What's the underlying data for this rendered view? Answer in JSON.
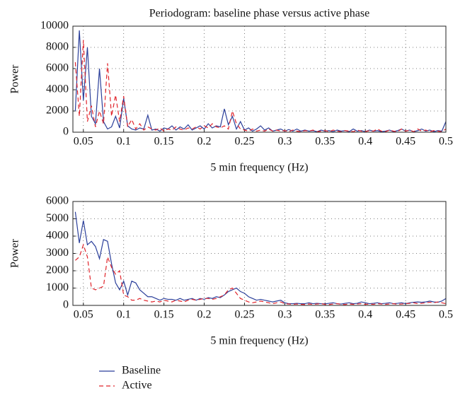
{
  "chart_data": [
    {
      "type": "line",
      "title": "Periodogram: baseline phase versus active phase",
      "xlabel": "5 min frequency (Hz)",
      "ylabel": "Power",
      "xlim": [
        0.037,
        0.5
      ],
      "ylim": [
        0,
        10000
      ],
      "xticks": [
        0.05,
        0.1,
        0.15,
        0.2,
        0.25,
        0.3,
        0.35,
        0.4,
        0.45,
        0.5
      ],
      "yticks": [
        0,
        2000,
        4000,
        6000,
        8000,
        10000
      ],
      "grid": true,
      "x": [
        0.04,
        0.045,
        0.05,
        0.055,
        0.06,
        0.065,
        0.07,
        0.075,
        0.08,
        0.085,
        0.09,
        0.095,
        0.1,
        0.105,
        0.11,
        0.115,
        0.12,
        0.125,
        0.13,
        0.135,
        0.14,
        0.145,
        0.15,
        0.155,
        0.16,
        0.165,
        0.17,
        0.175,
        0.18,
        0.185,
        0.19,
        0.195,
        0.2,
        0.205,
        0.21,
        0.215,
        0.22,
        0.225,
        0.23,
        0.235,
        0.24,
        0.245,
        0.25,
        0.255,
        0.26,
        0.265,
        0.27,
        0.275,
        0.28,
        0.285,
        0.29,
        0.295,
        0.3,
        0.305,
        0.31,
        0.315,
        0.32,
        0.325,
        0.33,
        0.335,
        0.34,
        0.345,
        0.35,
        0.355,
        0.36,
        0.365,
        0.37,
        0.375,
        0.38,
        0.385,
        0.39,
        0.395,
        0.4,
        0.405,
        0.41,
        0.415,
        0.42,
        0.425,
        0.43,
        0.435,
        0.44,
        0.445,
        0.45,
        0.455,
        0.46,
        0.465,
        0.47,
        0.475,
        0.48,
        0.485,
        0.49,
        0.495,
        0.5
      ],
      "series": [
        {
          "name": "Baseline",
          "color": "#2b3f9a",
          "linestyle": "solid",
          "values": [
            2000,
            9600,
            3000,
            8000,
            1500,
            800,
            6000,
            1000,
            300,
            500,
            1500,
            400,
            3200,
            600,
            300,
            200,
            400,
            300,
            1600,
            200,
            300,
            100,
            400,
            300,
            600,
            200,
            500,
            300,
            700,
            200,
            400,
            600,
            300,
            800,
            400,
            600,
            500,
            2200,
            700,
            1500,
            300,
            1000,
            200,
            400,
            100,
            300,
            600,
            200,
            400,
            100,
            200,
            300,
            100,
            250,
            100,
            300,
            100,
            200,
            100,
            150,
            50,
            200,
            100,
            150,
            50,
            200,
            100,
            150,
            50,
            300,
            100,
            150,
            50,
            200,
            100,
            150,
            50,
            100,
            200,
            50,
            150,
            300,
            100,
            200,
            50,
            150,
            300,
            100,
            200,
            50,
            150,
            100,
            1000
          ]
        },
        {
          "name": "Active",
          "color": "#e0242b",
          "linestyle": "dashed",
          "values": [
            6600,
            1500,
            8700,
            1000,
            2500,
            500,
            2000,
            800,
            6500,
            1500,
            3500,
            1000,
            3400,
            500,
            1200,
            300,
            800,
            200,
            500,
            300,
            200,
            400,
            100,
            300,
            200,
            500,
            300,
            200,
            400,
            300,
            500,
            300,
            600,
            400,
            800,
            500,
            400,
            600,
            300,
            2000,
            800,
            300,
            200,
            100,
            300,
            100,
            200,
            100,
            300,
            100,
            200,
            100,
            150,
            50,
            200,
            100,
            50,
            150,
            100,
            200,
            50,
            100,
            150,
            50,
            200,
            100,
            50,
            150,
            100,
            50,
            200,
            100,
            50,
            150,
            100,
            300,
            100,
            50,
            200,
            100,
            50,
            300,
            100,
            200,
            50,
            300,
            100,
            200,
            50,
            150,
            100,
            50,
            300
          ]
        }
      ]
    },
    {
      "type": "line",
      "xlabel": "5 min frequency (Hz)",
      "ylabel": "Power",
      "xlim": [
        0.037,
        0.5
      ],
      "ylim": [
        0,
        6000
      ],
      "xticks": [
        0.05,
        0.1,
        0.15,
        0.2,
        0.25,
        0.3,
        0.35,
        0.4,
        0.45,
        0.5
      ],
      "yticks": [
        0,
        1000,
        2000,
        3000,
        4000,
        5000,
        6000
      ],
      "grid": true,
      "x": [
        0.04,
        0.045,
        0.05,
        0.055,
        0.06,
        0.065,
        0.07,
        0.075,
        0.08,
        0.085,
        0.09,
        0.095,
        0.1,
        0.105,
        0.11,
        0.115,
        0.12,
        0.125,
        0.13,
        0.135,
        0.14,
        0.145,
        0.15,
        0.155,
        0.16,
        0.165,
        0.17,
        0.175,
        0.18,
        0.185,
        0.19,
        0.195,
        0.2,
        0.205,
        0.21,
        0.215,
        0.22,
        0.225,
        0.23,
        0.235,
        0.24,
        0.245,
        0.25,
        0.255,
        0.26,
        0.265,
        0.27,
        0.275,
        0.28,
        0.285,
        0.29,
        0.295,
        0.3,
        0.305,
        0.31,
        0.315,
        0.32,
        0.325,
        0.33,
        0.335,
        0.34,
        0.345,
        0.35,
        0.355,
        0.36,
        0.365,
        0.37,
        0.375,
        0.38,
        0.385,
        0.39,
        0.395,
        0.4,
        0.405,
        0.41,
        0.415,
        0.42,
        0.425,
        0.43,
        0.435,
        0.44,
        0.445,
        0.45,
        0.455,
        0.46,
        0.465,
        0.47,
        0.475,
        0.48,
        0.485,
        0.49,
        0.495,
        0.5
      ],
      "series": [
        {
          "color": "#2b3f9a",
          "linestyle": "solid",
          "values": [
            5400,
            3600,
            4900,
            3500,
            3700,
            3400,
            2700,
            3800,
            3700,
            2400,
            1300,
            900,
            1400,
            600,
            1400,
            1300,
            900,
            700,
            500,
            500,
            400,
            300,
            400,
            350,
            350,
            300,
            400,
            300,
            350,
            400,
            300,
            400,
            350,
            450,
            400,
            500,
            450,
            600,
            800,
            900,
            1000,
            800,
            700,
            500,
            400,
            300,
            350,
            300,
            250,
            200,
            250,
            300,
            150,
            100,
            100,
            120,
            100,
            100,
            150,
            100,
            120,
            100,
            90,
            120,
            150,
            100,
            80,
            120,
            150,
            100,
            120,
            200,
            150,
            100,
            120,
            150,
            100,
            120,
            150,
            100,
            120,
            150,
            100,
            150,
            180,
            200,
            180,
            200,
            250,
            200,
            180,
            250,
            400
          ]
        },
        {
          "color": "#e0242b",
          "linestyle": "dashed",
          "values": [
            2600,
            2800,
            3500,
            2800,
            1000,
            900,
            1000,
            1100,
            2800,
            2200,
            1800,
            2000,
            600,
            500,
            300,
            300,
            400,
            300,
            250,
            200,
            250,
            200,
            300,
            250,
            200,
            300,
            250,
            200,
            300,
            350,
            300,
            350,
            400,
            400,
            350,
            400,
            500,
            600,
            900,
            1000,
            700,
            400,
            300,
            200,
            150,
            200,
            250,
            200,
            150,
            100,
            150,
            200,
            100,
            80,
            60,
            80,
            60,
            50,
            80,
            60,
            80,
            100,
            60,
            50,
            80,
            100,
            60,
            50,
            80,
            60,
            80,
            100,
            60,
            80,
            60,
            100,
            80,
            60,
            80,
            100,
            60,
            80,
            100,
            120,
            150,
            100,
            120,
            150,
            180,
            150,
            200,
            150,
            100
          ]
        }
      ]
    }
  ]
}
